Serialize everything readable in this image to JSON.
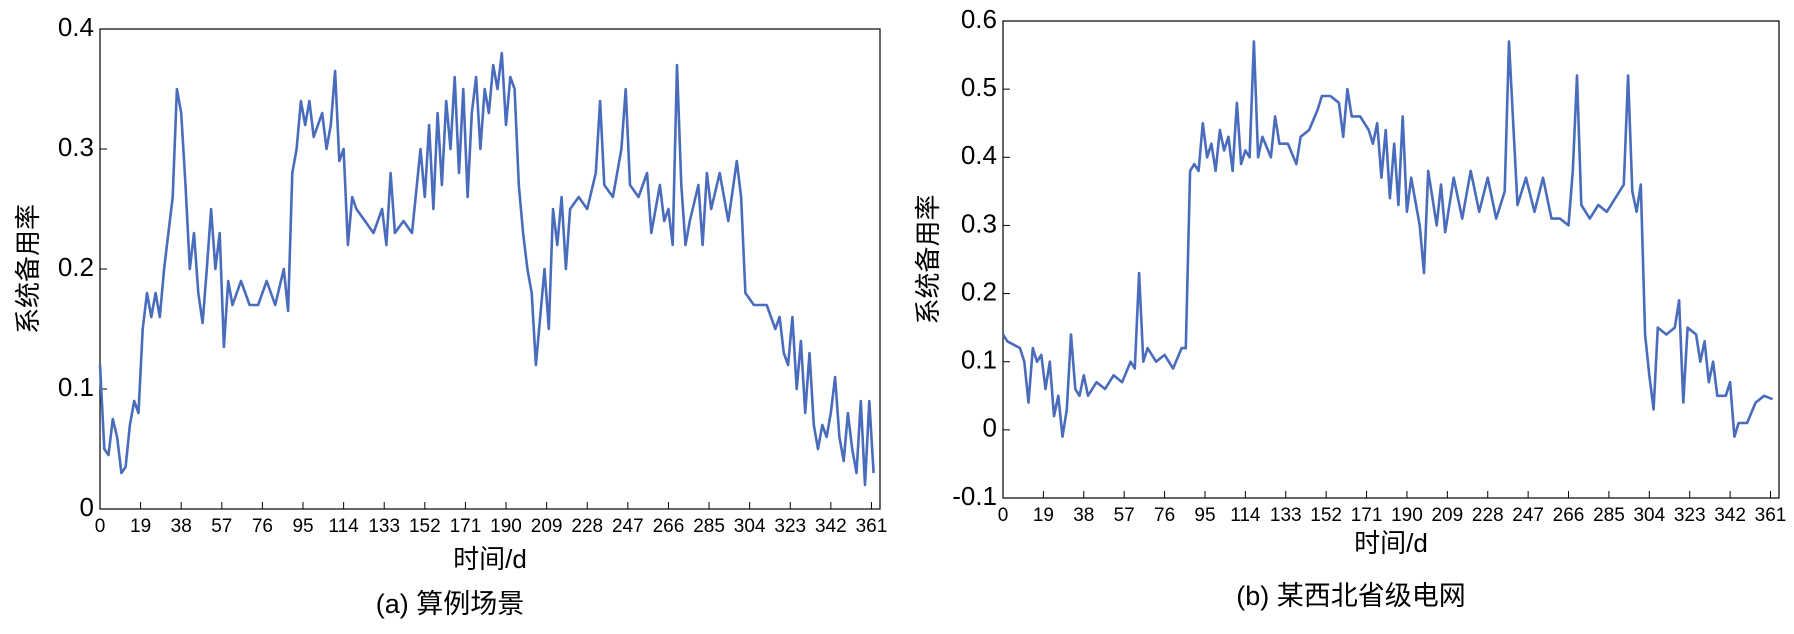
{
  "chart_data": [
    {
      "type": "line",
      "caption": "(a) 算例场景",
      "xlabel": "时间/d",
      "ylabel": "系统备用率",
      "xlim": [
        0,
        365
      ],
      "xticks": [
        0,
        19,
        38,
        57,
        76,
        95,
        114,
        133,
        152,
        171,
        190,
        209,
        228,
        247,
        266,
        285,
        304,
        323,
        342,
        361
      ],
      "ylim": [
        0,
        0.4
      ],
      "yticks": [
        0,
        0.1,
        0.2,
        0.3,
        0.4
      ],
      "series": [
        {
          "name": "系统备用率",
          "color": "#4a6cbc",
          "x": [
            0,
            2,
            4,
            6,
            8,
            10,
            12,
            14,
            16,
            18,
            20,
            22,
            24,
            26,
            28,
            30,
            32,
            34,
            36,
            38,
            40,
            42,
            44,
            46,
            48,
            50,
            52,
            54,
            56,
            58,
            60,
            62,
            66,
            70,
            74,
            78,
            82,
            86,
            88,
            90,
            92,
            94,
            96,
            98,
            100,
            104,
            106,
            108,
            110,
            112,
            114,
            116,
            118,
            120,
            124,
            128,
            132,
            134,
            136,
            138,
            142,
            146,
            150,
            152,
            154,
            156,
            158,
            160,
            162,
            164,
            166,
            168,
            170,
            172,
            174,
            176,
            178,
            180,
            182,
            184,
            186,
            188,
            190,
            192,
            194,
            196,
            198,
            200,
            202,
            204,
            206,
            208,
            210,
            212,
            214,
            216,
            218,
            220,
            224,
            228,
            232,
            234,
            236,
            240,
            244,
            246,
            248,
            252,
            256,
            258,
            262,
            264,
            266,
            268,
            270,
            272,
            274,
            276,
            280,
            282,
            284,
            286,
            290,
            294,
            298,
            300,
            302,
            306,
            312,
            316,
            318,
            320,
            322,
            324,
            326,
            328,
            330,
            332,
            334,
            336,
            338,
            340,
            342,
            344,
            346,
            348,
            350,
            352,
            354,
            356,
            358,
            360,
            362
          ],
          "values": [
            0.12,
            0.05,
            0.045,
            0.075,
            0.06,
            0.03,
            0.035,
            0.07,
            0.09,
            0.08,
            0.15,
            0.18,
            0.16,
            0.18,
            0.16,
            0.2,
            0.23,
            0.26,
            0.35,
            0.33,
            0.27,
            0.2,
            0.23,
            0.18,
            0.155,
            0.2,
            0.25,
            0.2,
            0.23,
            0.135,
            0.19,
            0.17,
            0.19,
            0.17,
            0.17,
            0.19,
            0.17,
            0.2,
            0.165,
            0.28,
            0.3,
            0.34,
            0.32,
            0.34,
            0.31,
            0.33,
            0.3,
            0.32,
            0.365,
            0.29,
            0.3,
            0.22,
            0.26,
            0.25,
            0.24,
            0.23,
            0.25,
            0.22,
            0.28,
            0.23,
            0.24,
            0.23,
            0.3,
            0.26,
            0.32,
            0.25,
            0.33,
            0.27,
            0.34,
            0.3,
            0.36,
            0.28,
            0.35,
            0.26,
            0.33,
            0.36,
            0.3,
            0.35,
            0.33,
            0.37,
            0.35,
            0.38,
            0.32,
            0.36,
            0.35,
            0.27,
            0.23,
            0.2,
            0.18,
            0.12,
            0.16,
            0.2,
            0.15,
            0.25,
            0.22,
            0.26,
            0.2,
            0.25,
            0.26,
            0.25,
            0.28,
            0.34,
            0.27,
            0.26,
            0.3,
            0.35,
            0.27,
            0.26,
            0.28,
            0.23,
            0.27,
            0.24,
            0.25,
            0.22,
            0.37,
            0.27,
            0.22,
            0.24,
            0.27,
            0.22,
            0.28,
            0.25,
            0.28,
            0.24,
            0.29,
            0.26,
            0.18,
            0.17,
            0.17,
            0.15,
            0.16,
            0.13,
            0.12,
            0.16,
            0.1,
            0.14,
            0.08,
            0.13,
            0.07,
            0.05,
            0.07,
            0.06,
            0.08,
            0.11,
            0.06,
            0.04,
            0.08,
            0.05,
            0.03,
            0.09,
            0.02,
            0.09,
            0.03
          ]
        }
      ]
    },
    {
      "type": "line",
      "caption": "(b) 某西北省级电网",
      "xlabel": "时间/d",
      "ylabel": "系统备用率",
      "xlim": [
        0,
        365
      ],
      "xticks": [
        0,
        19,
        38,
        57,
        76,
        95,
        114,
        133,
        152,
        171,
        190,
        209,
        228,
        247,
        266,
        285,
        304,
        323,
        342,
        361
      ],
      "ylim": [
        -0.1,
        0.6
      ],
      "yticks": [
        -0.1,
        0,
        0.1,
        0.2,
        0.3,
        0.4,
        0.5,
        0.6
      ],
      "series": [
        {
          "name": "系统备用率",
          "color": "#4a6cbc",
          "x": [
            0,
            2,
            8,
            10,
            12,
            14,
            16,
            18,
            20,
            22,
            24,
            26,
            28,
            30,
            32,
            34,
            36,
            38,
            40,
            44,
            48,
            52,
            56,
            60,
            62,
            64,
            66,
            68,
            72,
            76,
            80,
            84,
            86,
            88,
            90,
            92,
            94,
            96,
            98,
            100,
            102,
            104,
            106,
            108,
            110,
            112,
            114,
            116,
            118,
            120,
            122,
            126,
            128,
            130,
            134,
            138,
            140,
            144,
            148,
            150,
            154,
            158,
            160,
            162,
            164,
            168,
            172,
            174,
            176,
            178,
            180,
            182,
            184,
            186,
            188,
            190,
            192,
            196,
            198,
            200,
            204,
            206,
            208,
            212,
            216,
            220,
            224,
            228,
            232,
            236,
            238,
            240,
            242,
            246,
            250,
            254,
            258,
            262,
            266,
            268,
            270,
            272,
            276,
            280,
            284,
            288,
            292,
            294,
            296,
            298,
            300,
            302,
            304,
            306,
            308,
            312,
            316,
            318,
            320,
            322,
            326,
            328,
            330,
            332,
            334,
            336,
            340,
            342,
            344,
            346,
            350,
            354,
            358,
            362
          ],
          "values": [
            0.14,
            0.13,
            0.12,
            0.1,
            0.04,
            0.12,
            0.1,
            0.11,
            0.06,
            0.1,
            0.02,
            0.05,
            -0.01,
            0.03,
            0.14,
            0.06,
            0.05,
            0.08,
            0.05,
            0.07,
            0.06,
            0.08,
            0.07,
            0.1,
            0.09,
            0.23,
            0.1,
            0.12,
            0.1,
            0.11,
            0.09,
            0.12,
            0.12,
            0.38,
            0.39,
            0.38,
            0.45,
            0.4,
            0.42,
            0.38,
            0.44,
            0.41,
            0.43,
            0.38,
            0.48,
            0.39,
            0.41,
            0.4,
            0.57,
            0.4,
            0.43,
            0.4,
            0.46,
            0.42,
            0.42,
            0.39,
            0.43,
            0.44,
            0.47,
            0.49,
            0.49,
            0.48,
            0.43,
            0.5,
            0.46,
            0.46,
            0.44,
            0.42,
            0.45,
            0.37,
            0.44,
            0.34,
            0.42,
            0.33,
            0.46,
            0.32,
            0.37,
            0.3,
            0.23,
            0.38,
            0.3,
            0.36,
            0.29,
            0.37,
            0.31,
            0.38,
            0.32,
            0.37,
            0.31,
            0.35,
            0.57,
            0.45,
            0.33,
            0.37,
            0.32,
            0.37,
            0.31,
            0.31,
            0.3,
            0.38,
            0.52,
            0.33,
            0.31,
            0.33,
            0.32,
            0.34,
            0.36,
            0.52,
            0.35,
            0.32,
            0.36,
            0.14,
            0.08,
            0.03,
            0.15,
            0.14,
            0.15,
            0.19,
            0.04,
            0.15,
            0.14,
            0.1,
            0.13,
            0.07,
            0.1,
            0.05,
            0.05,
            0.07,
            -0.01,
            0.01,
            0.01,
            0.04,
            0.05,
            0.045
          ]
        }
      ]
    }
  ]
}
